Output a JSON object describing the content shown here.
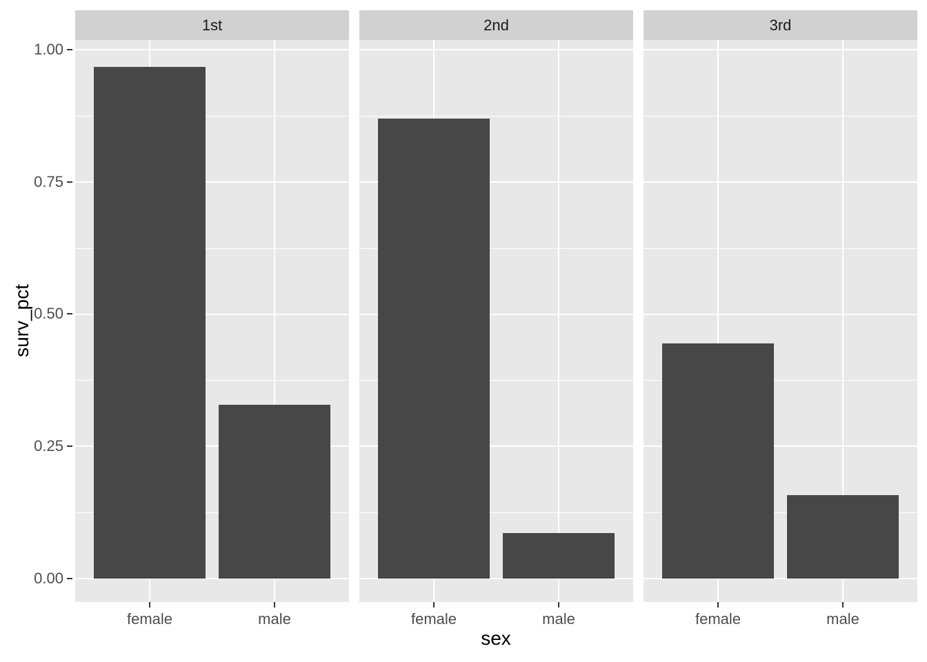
{
  "chart_data": {
    "type": "bar",
    "title": "",
    "xlabel": "sex",
    "ylabel": "surv_pct",
    "categories": [
      "female",
      "male"
    ],
    "facets": [
      {
        "label": "1st",
        "values": [
          0.967,
          0.328
        ]
      },
      {
        "label": "2nd",
        "values": [
          0.87,
          0.086
        ]
      },
      {
        "label": "3rd",
        "values": [
          0.445,
          0.158
        ]
      }
    ],
    "y_ticks": [
      {
        "label": "1.00",
        "value": 1.0
      },
      {
        "label": "0.75",
        "value": 0.75
      },
      {
        "label": "0.50",
        "value": 0.5
      },
      {
        "label": "0.25",
        "value": 0.25
      },
      {
        "label": "0.00",
        "value": 0.0
      }
    ],
    "y_major_gridlines": [
      0.0,
      0.25,
      0.5,
      0.75,
      1.0
    ],
    "y_minor_gridlines": [
      0.125,
      0.375,
      0.625,
      0.875
    ],
    "ylim_displayed": [
      -0.044,
      1.018
    ],
    "grid": "major+minor",
    "legend": "none",
    "style": {
      "bar_color": "#474747",
      "panel_bg": "#e8e8e8",
      "strip_bg": "#d1d1d1",
      "gridline_color": "#ffffff",
      "axis_text_color": "#4d4d4d",
      "axis_title_color": "#000000",
      "strip_text_color": "#1a1a1a",
      "background": "#ffffff"
    }
  }
}
